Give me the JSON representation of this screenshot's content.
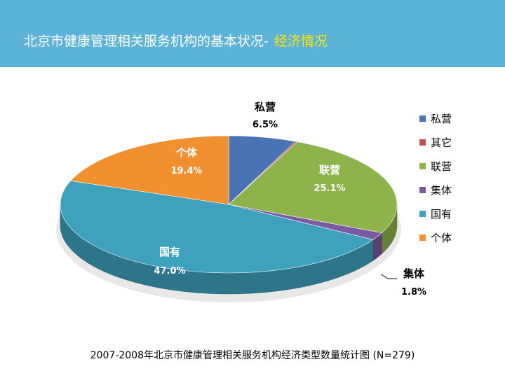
{
  "header": {
    "title_main": "北京市健康管理相关服务机构的基本状况-",
    "title_highlight": "经济情况"
  },
  "colors": {
    "header_bg": "#5bb4d8",
    "title_text": "#ffffff",
    "title_highlight": "#ffe000"
  },
  "chart_data": {
    "type": "pie",
    "style": "3d",
    "title": "",
    "legend_position": "right",
    "slices": [
      {
        "name": "私营",
        "value": 6.5,
        "label": "6.5%",
        "color": "#4a73b5"
      },
      {
        "name": "其它",
        "value": 0.2,
        "label": "",
        "color": "#c0504d"
      },
      {
        "name": "联营",
        "value": 25.1,
        "label": "25.1%",
        "color": "#8db44a"
      },
      {
        "name": "集体",
        "value": 1.8,
        "label": "1.8%",
        "color": "#7a5aa0"
      },
      {
        "name": "国有",
        "value": 47.0,
        "label": "47.0%",
        "color": "#3fa2bd"
      },
      {
        "name": "个体",
        "value": 19.4,
        "label": "19.4%",
        "color": "#f0902e"
      }
    ],
    "legend": [
      "私营",
      "其它",
      "联营",
      "集体",
      "国有",
      "个体"
    ],
    "caption": "2007-2008年北京市健康管理相关服务机构经济类型数量统计图 (N=279)"
  }
}
